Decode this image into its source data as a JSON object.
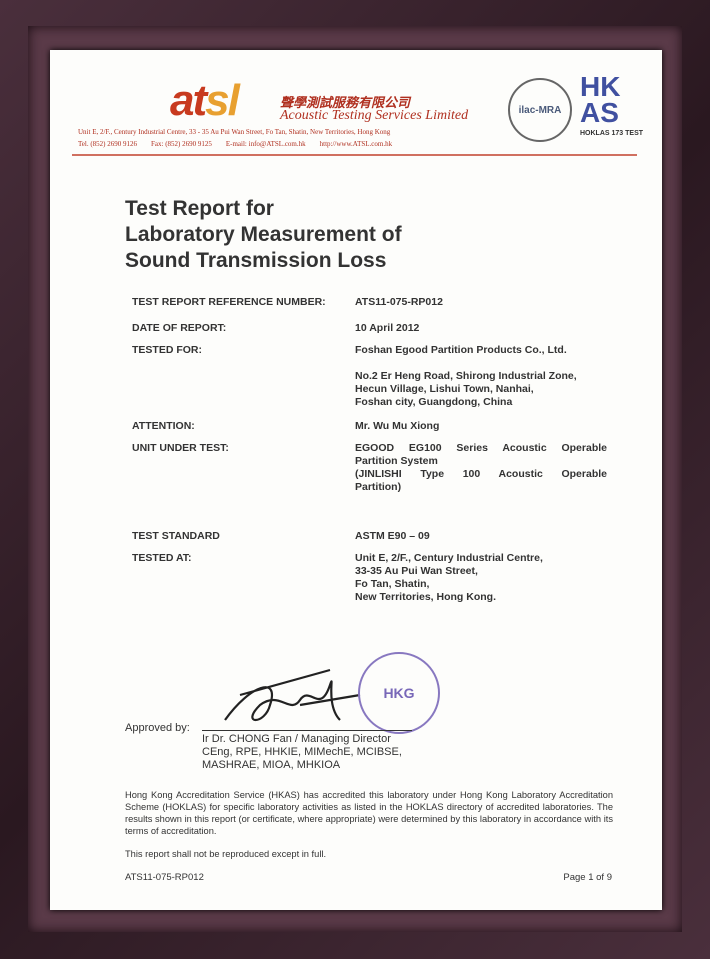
{
  "header": {
    "logo": "atsl",
    "company_cn": "聲學測試服務有限公司",
    "company_en": "Acoustic Testing Services Limited",
    "address": "Unit E, 2/F., Century Industrial Centre, 33 - 35 Au Pui Wan Street, Fo Tan, Shatin, New Territories, Hong Kong",
    "tel": "Tel. (852) 2690 9126",
    "fax": "Fax: (852) 2690 9125",
    "email": "E-mail: info@ATSL.com.hk",
    "web": "http://www.ATSL.com.hk",
    "ilac": "ilac-MRA",
    "hkas": "HKAS",
    "hoklas": "HOKLAS 173 TEST"
  },
  "title": [
    "Test Report for",
    "Laboratory Measurement of",
    "Sound Transmission Loss"
  ],
  "fields": [
    {
      "label": "TEST REPORT REFERENCE NUMBER:",
      "value": [
        "ATS11-075-RP012"
      ]
    },
    {
      "label": "DATE OF REPORT:",
      "value": [
        "10 April 2012"
      ]
    },
    {
      "label": "TESTED FOR:",
      "value": [
        "Foshan Egood Partition Products Co., Ltd.",
        "",
        "No.2 Er Heng Road, Shirong Industrial Zone,",
        "Hecun Village, Lishui Town, Nanhai,",
        "Foshan city, Guangdong, China"
      ]
    },
    {
      "label": "ATTENTION:",
      "value": [
        "Mr. Wu Mu Xiong"
      ]
    },
    {
      "label": "UNIT UNDER TEST:",
      "value": [
        "EGOOD EG100 Series Acoustic Operable",
        "Partition System",
        "(JINLISHI Type 100 Acoustic Operable",
        "Partition)"
      ]
    },
    {
      "label": "TEST STANDARD",
      "value": [
        "ASTM E90 – 09"
      ]
    },
    {
      "label": "TESTED AT:",
      "value": [
        "Unit E, 2/F., Century Industrial Centre,",
        "33-35 Au Pui Wan Street,",
        "Fo Tan, Shatin,",
        "New Territories, Hong Kong."
      ]
    }
  ],
  "approval": {
    "label": "Approved by:",
    "name": "Ir Dr. CHONG Fan / Managing Director",
    "quals1": "CEng, RPE, HHKIE, MIMechE, MCIBSE,",
    "quals2": "MASHRAE, MIOA, MHKIOA",
    "stamp": "Acoustic Testing Services Limited"
  },
  "note": "Hong Kong Accreditation Service (HKAS) has accredited this laboratory under Hong Kong Laboratory Accreditation Scheme (HOKLAS) for specific laboratory activities as listed in the HOKLAS directory of accredited laboratories. The results shown in this report (or certificate, where appropriate) were determined by this laboratory in accordance with its terms of accreditation.",
  "reproduction": "This report shall not be reproduced except in full.",
  "footer": {
    "ref": "ATS11-075-RP012",
    "page": "Page 1 of 9"
  }
}
